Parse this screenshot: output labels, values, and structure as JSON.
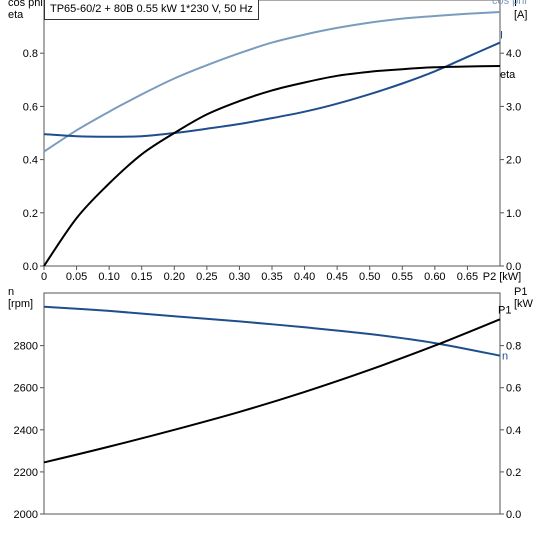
{
  "title": "TP65-60/2 + 80B   0.55 kW   1*230 V, 50 Hz",
  "chart_data": [
    {
      "type": "line",
      "x_unit_label": "P2 [kW]",
      "x_ticks": [
        "0",
        "0.05",
        "0.10",
        "0.15",
        "0.20",
        "0.25",
        "0.30",
        "0.35",
        "0.40",
        "0.45",
        "0.50",
        "0.55",
        "0.60",
        "0.65"
      ],
      "xlim": [
        0,
        0.7
      ],
      "left_axis": {
        "label_lines": [
          "cos phi",
          "eta"
        ],
        "ylim": [
          0,
          1.0
        ],
        "ticks": [
          "0.0",
          "0.2",
          "0.4",
          "0.6",
          "0.8"
        ]
      },
      "right_axis": {
        "label_lines": [
          "I",
          "[A]"
        ],
        "ylim": [
          0,
          5.0
        ],
        "ticks": [
          "0.0",
          "1.0",
          "2.0",
          "3.0",
          "4.0"
        ]
      },
      "grid": false,
      "series": [
        {
          "name": "cos phi",
          "axis": "left",
          "color": "#7a9cbe",
          "x": [
            0,
            0.05,
            0.1,
            0.15,
            0.2,
            0.25,
            0.3,
            0.35,
            0.4,
            0.45,
            0.5,
            0.55,
            0.6,
            0.65,
            0.7
          ],
          "y": [
            0.43,
            0.51,
            0.58,
            0.645,
            0.705,
            0.755,
            0.8,
            0.84,
            0.87,
            0.895,
            0.915,
            0.93,
            0.94,
            0.948,
            0.955
          ]
        },
        {
          "name": "I",
          "axis": "right",
          "color": "#1f4e8c",
          "x": [
            0,
            0.05,
            0.1,
            0.15,
            0.2,
            0.25,
            0.3,
            0.35,
            0.4,
            0.45,
            0.5,
            0.55,
            0.6,
            0.65,
            0.7
          ],
          "y": [
            2.48,
            2.44,
            2.43,
            2.44,
            2.5,
            2.58,
            2.67,
            2.78,
            2.9,
            3.05,
            3.23,
            3.43,
            3.66,
            3.93,
            4.2
          ]
        },
        {
          "name": "eta",
          "axis": "left",
          "color": "#000000",
          "x": [
            0,
            0.05,
            0.1,
            0.15,
            0.2,
            0.25,
            0.3,
            0.35,
            0.4,
            0.45,
            0.5,
            0.55,
            0.6,
            0.65,
            0.7
          ],
          "y": [
            0.0,
            0.18,
            0.31,
            0.42,
            0.5,
            0.57,
            0.62,
            0.66,
            0.69,
            0.715,
            0.73,
            0.74,
            0.747,
            0.75,
            0.752
          ]
        }
      ]
    },
    {
      "type": "line",
      "xlim": [
        0,
        0.7
      ],
      "left_axis": {
        "label_lines": [
          "n",
          "[rpm]"
        ],
        "ylim": [
          2000,
          3050
        ],
        "ticks": [
          "2000",
          "2200",
          "2400",
          "2600",
          "2800"
        ]
      },
      "right_axis": {
        "label_lines": [
          "P1",
          "[kW]"
        ],
        "ylim": [
          0,
          1.05
        ],
        "ticks": [
          "0.0",
          "0.2",
          "0.4",
          "0.6",
          "0.8"
        ]
      },
      "grid": false,
      "series": [
        {
          "name": "n",
          "axis": "left",
          "color": "#1f4e8c",
          "x": [
            0,
            0.1,
            0.2,
            0.3,
            0.4,
            0.5,
            0.6,
            0.7
          ],
          "y": [
            2985,
            2965,
            2940,
            2915,
            2887,
            2855,
            2812,
            2752
          ]
        },
        {
          "name": "P1",
          "axis": "right",
          "color": "#000000",
          "x": [
            0,
            0.1,
            0.2,
            0.3,
            0.4,
            0.5,
            0.6,
            0.7
          ],
          "y": [
            0.245,
            0.32,
            0.4,
            0.485,
            0.58,
            0.685,
            0.8,
            0.925
          ]
        }
      ]
    }
  ]
}
